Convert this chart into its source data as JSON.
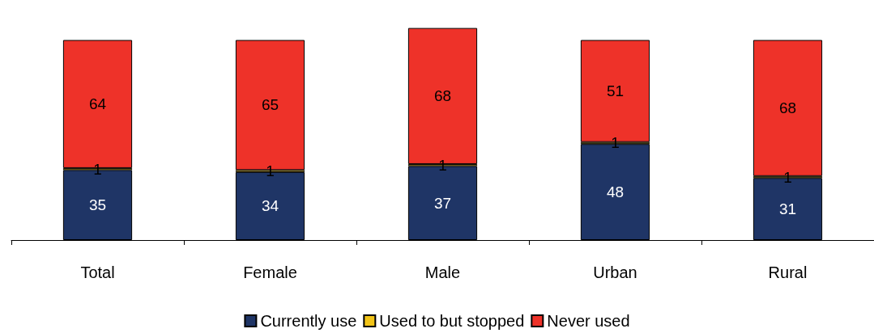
{
  "chart_data": {
    "type": "bar",
    "stacked": true,
    "data_labels": true,
    "legend": "bottom",
    "categories": [
      "Total",
      "Female",
      "Male",
      "Urban",
      "Rural"
    ],
    "series": [
      {
        "name": "Currently use",
        "color": "#1f3566",
        "values": [
          35,
          34,
          37,
          48,
          31
        ]
      },
      {
        "name": "Used to but stopped",
        "color": "#f2c418",
        "values": [
          1,
          1,
          1,
          1,
          1
        ]
      },
      {
        "name": "Never used",
        "color": "#ee3229",
        "values": [
          64,
          65,
          68,
          51,
          68
        ]
      }
    ]
  }
}
